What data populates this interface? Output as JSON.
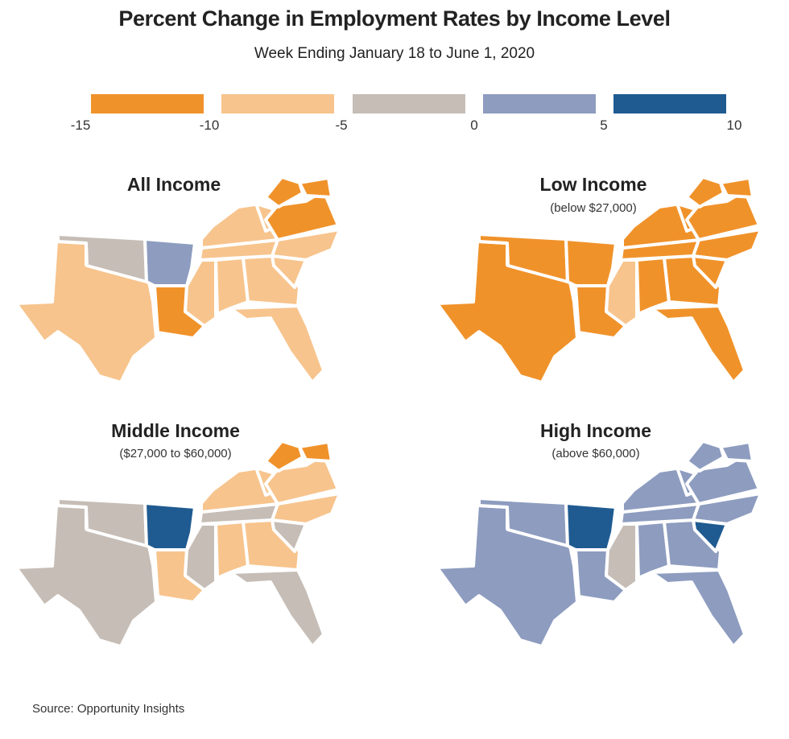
{
  "title": "Percent Change in Employment Rates by Income Level",
  "subtitle": "Week Ending January 18 to June 1, 2020",
  "legend": {
    "ticks": [
      "-15",
      "-10",
      "-5",
      "0",
      "5",
      "10"
    ],
    "bins": [
      {
        "range": "-15 to -10",
        "color": "#F0922A"
      },
      {
        "range": "-10 to -5",
        "color": "#F7C48D"
      },
      {
        "range": "-5 to 0",
        "color": "#C5BDB6"
      },
      {
        "range": "0 to 5",
        "color": "#8D9CBF"
      },
      {
        "range": "5 to 10",
        "color": "#1F5B91"
      }
    ]
  },
  "bin_colors": [
    "#F0922A",
    "#F7C48D",
    "#C5BDB6",
    "#8D9CBF",
    "#1F5B91"
  ],
  "panels": [
    {
      "title": "All Income",
      "subtitle": "",
      "bins": {
        "TX": 1,
        "OK": 2,
        "AR": 3,
        "LA": 0,
        "MS": 1,
        "AL": 1,
        "GA": 1,
        "FL": 1,
        "TN": 1,
        "KY": 1,
        "NC": 1,
        "SC": 1,
        "VA": 0,
        "WV": 1,
        "MD": 0,
        "DE": 0
      }
    },
    {
      "title": "Low Income",
      "subtitle": "(below $27,000)",
      "bins": {
        "TX": 0,
        "OK": 0,
        "AR": 0,
        "LA": 0,
        "MS": 1,
        "AL": 0,
        "GA": 0,
        "FL": 0,
        "TN": 0,
        "KY": 0,
        "NC": 0,
        "SC": 0,
        "VA": 0,
        "WV": 0,
        "MD": 0,
        "DE": 0
      }
    },
    {
      "title": "Middle Income",
      "subtitle": "($27,000 to $60,000)",
      "bins": {
        "TX": 2,
        "OK": 2,
        "AR": 4,
        "LA": 1,
        "MS": 2,
        "AL": 1,
        "GA": 1,
        "FL": 2,
        "TN": 2,
        "KY": 1,
        "NC": 1,
        "SC": 2,
        "VA": 1,
        "WV": 1,
        "MD": 0,
        "DE": 0
      }
    },
    {
      "title": "High Income",
      "subtitle": "(above $60,000)",
      "bins": {
        "TX": 3,
        "OK": 3,
        "AR": 4,
        "LA": 3,
        "MS": 2,
        "AL": 3,
        "GA": 3,
        "FL": 3,
        "TN": 3,
        "KY": 3,
        "NC": 3,
        "SC": 4,
        "VA": 3,
        "WV": 3,
        "MD": 3,
        "DE": 3
      }
    }
  ],
  "source": "Source: Opportunity Insights"
}
